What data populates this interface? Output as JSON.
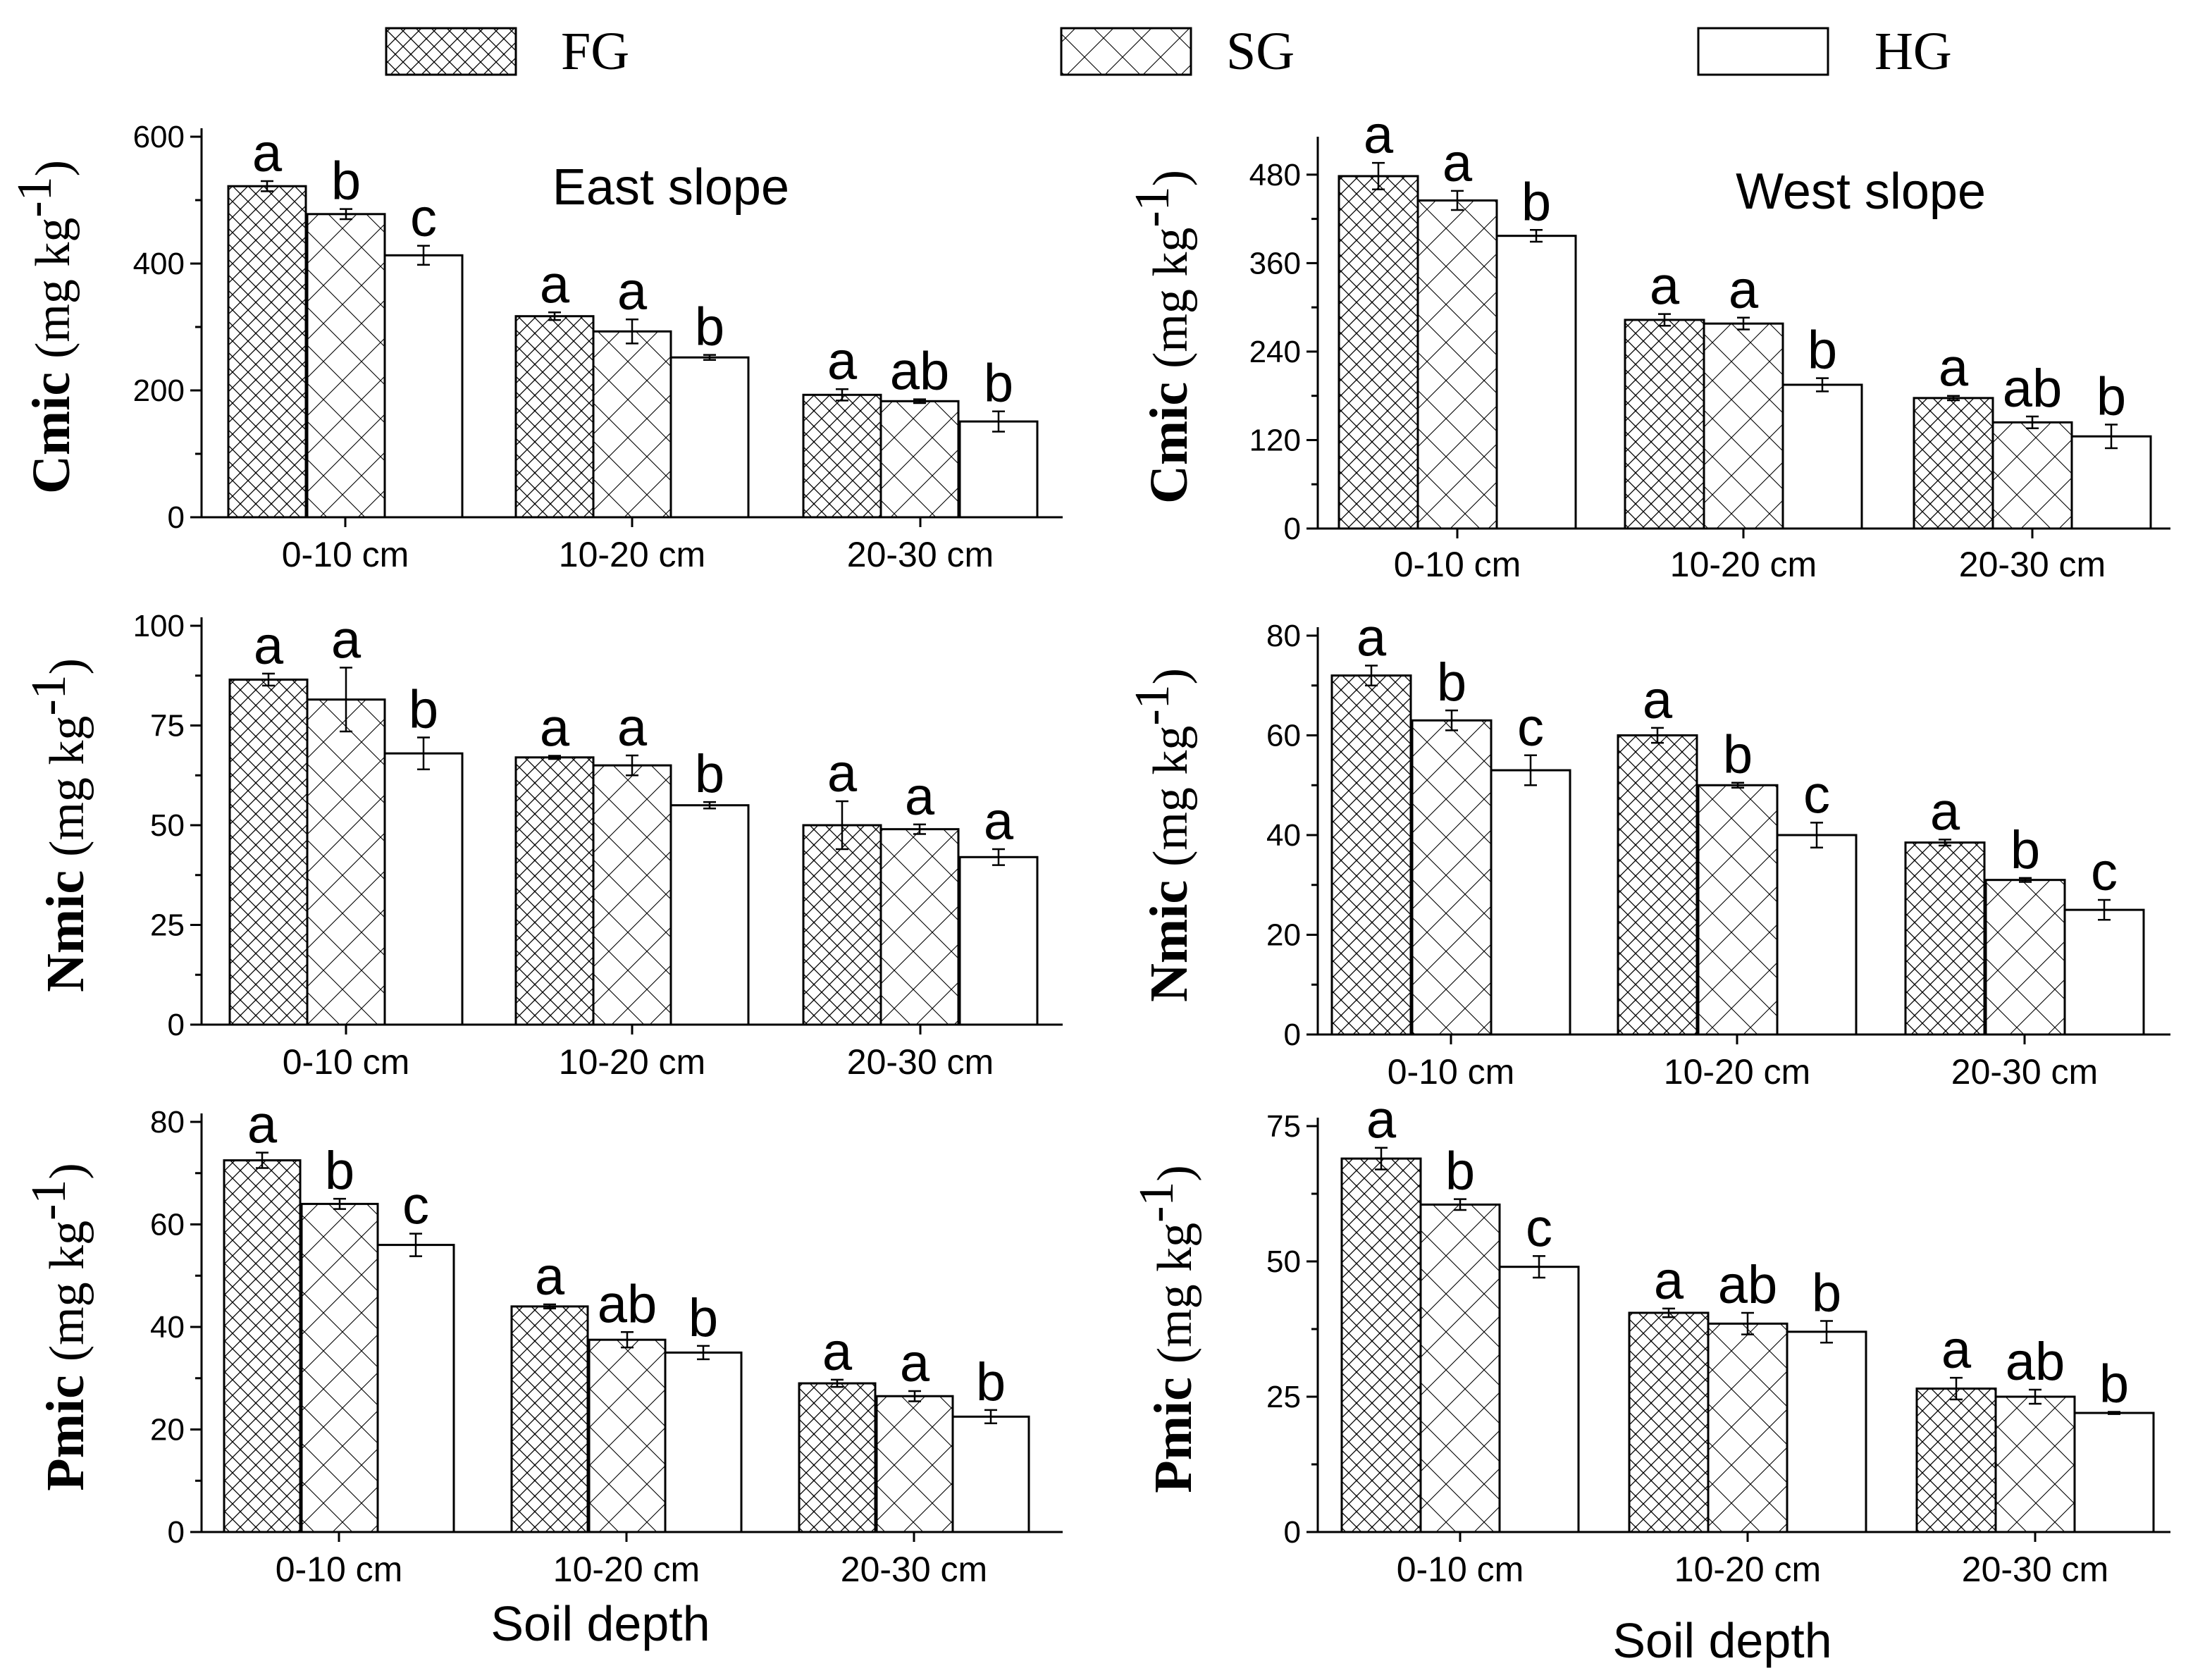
{
  "legend": [
    {
      "key": "FG",
      "label": "FG",
      "pattern": "dense"
    },
    {
      "key": "SG",
      "label": "SG",
      "pattern": "sparse"
    },
    {
      "key": "HG",
      "label": "HG",
      "pattern": "none"
    }
  ],
  "xaxis_title": "Soil depth",
  "chart_data": [
    {
      "type": "bar",
      "panel": "east-cmic",
      "annotation": "East slope",
      "ylabel_main": "Cmic",
      "ylabel_unit": "(mg kg",
      "ylim": [
        0,
        600
      ],
      "yticks": [
        0,
        200,
        400,
        600
      ],
      "categories": [
        "0-10 cm",
        "10-20 cm",
        "20-30 cm"
      ],
      "series": [
        {
          "name": "FG",
          "values": [
            522,
            317,
            193
          ],
          "errors": [
            8,
            6,
            9
          ],
          "sig": [
            "a",
            "a",
            "a"
          ]
        },
        {
          "name": "SG",
          "values": [
            478,
            293,
            183
          ],
          "errors": [
            8,
            19,
            3
          ],
          "sig": [
            "b",
            "a",
            "ab"
          ]
        },
        {
          "name": "HG",
          "values": [
            413,
            252,
            151
          ],
          "errors": [
            15,
            4,
            16
          ],
          "sig": [
            "c",
            "b",
            "b"
          ]
        }
      ]
    },
    {
      "type": "bar",
      "panel": "west-cmic",
      "annotation": "West  slope",
      "ylabel_main": "Cmic",
      "ylabel_unit": "(mg kg",
      "ylim": [
        0,
        520
      ],
      "yticks": [
        0,
        120,
        240,
        360,
        480
      ],
      "categories": [
        "0-10 cm",
        "10-20 cm",
        "20-30 cm"
      ],
      "series": [
        {
          "name": "FG",
          "values": [
            478,
            283,
            177
          ],
          "errors": [
            18,
            8,
            3
          ],
          "sig": [
            "a",
            "a",
            "a"
          ]
        },
        {
          "name": "SG",
          "values": [
            445,
            278,
            144
          ],
          "errors": [
            13,
            8,
            8
          ],
          "sig": [
            "a",
            "a",
            "ab"
          ]
        },
        {
          "name": "HG",
          "values": [
            397,
            195,
            125
          ],
          "errors": [
            8,
            9,
            16
          ],
          "sig": [
            "b",
            "b",
            "b"
          ]
        }
      ]
    },
    {
      "type": "bar",
      "panel": "east-nmic",
      "annotation": "",
      "ylabel_main": "Nmic",
      "ylabel_unit": "(mg kg",
      "ylim": [
        0,
        100
      ],
      "yticks": [
        0,
        25,
        50,
        75,
        100
      ],
      "categories": [
        "0-10 cm",
        "10-20 cm",
        "20-30 cm"
      ],
      "series": [
        {
          "name": "FG",
          "values": [
            86.5,
            67,
            50
          ],
          "errors": [
            1.5,
            0.4,
            6
          ],
          "sig": [
            "a",
            "a",
            "a"
          ]
        },
        {
          "name": "SG",
          "values": [
            81.5,
            65,
            49
          ],
          "errors": [
            8,
            2.5,
            1.2
          ],
          "sig": [
            "a",
            "a",
            "a"
          ]
        },
        {
          "name": "HG",
          "values": [
            68,
            55,
            42
          ],
          "errors": [
            4,
            0.8,
            2
          ],
          "sig": [
            "b",
            "b",
            "a"
          ]
        }
      ]
    },
    {
      "type": "bar",
      "panel": "west-nmic",
      "annotation": "",
      "ylabel_main": "Nmic",
      "ylabel_unit": "(mg kg",
      "ylim": [
        0,
        80
      ],
      "yticks": [
        0,
        20,
        40,
        60,
        80
      ],
      "categories": [
        "0-10 cm",
        "10-20 cm",
        "20-30 cm"
      ],
      "series": [
        {
          "name": "FG",
          "values": [
            72,
            60,
            38.5
          ],
          "errors": [
            2,
            1.5,
            0.6
          ],
          "sig": [
            "a",
            "a",
            "a"
          ]
        },
        {
          "name": "SG",
          "values": [
            63,
            50,
            31
          ],
          "errors": [
            2,
            0.5,
            0.4
          ],
          "sig": [
            "b",
            "b",
            "b"
          ]
        },
        {
          "name": "HG",
          "values": [
            53,
            40,
            25
          ],
          "errors": [
            3,
            2.5,
            2
          ],
          "sig": [
            "c",
            "c",
            "c"
          ]
        }
      ]
    },
    {
      "type": "bar",
      "panel": "east-pmic",
      "annotation": "",
      "ylabel_main": "Pmic",
      "ylabel_unit": "(mg kg",
      "ylim": [
        0,
        80
      ],
      "yticks": [
        0,
        20,
        40,
        60,
        80
      ],
      "categories": [
        "0-10 cm",
        "10-20 cm",
        "20-30 cm"
      ],
      "series": [
        {
          "name": "FG",
          "values": [
            72.5,
            44,
            29
          ],
          "errors": [
            1.5,
            0.4,
            0.7
          ],
          "sig": [
            "a",
            "a",
            "a"
          ]
        },
        {
          "name": "SG",
          "values": [
            64,
            37.5,
            26.5
          ],
          "errors": [
            1,
            1.5,
            1
          ],
          "sig": [
            "b",
            "ab",
            "a"
          ]
        },
        {
          "name": "HG",
          "values": [
            56,
            35,
            22.5
          ],
          "errors": [
            2.2,
            1.3,
            1.3
          ],
          "sig": [
            "c",
            "b",
            "b"
          ]
        }
      ]
    },
    {
      "type": "bar",
      "panel": "west-pmic",
      "annotation": "",
      "ylabel_main": "Pmic",
      "ylabel_unit": "(mg kg",
      "ylim": [
        0,
        75
      ],
      "yticks": [
        0,
        25,
        50,
        75
      ],
      "categories": [
        "0-10 cm",
        "10-20 cm",
        "20-30 cm"
      ],
      "series": [
        {
          "name": "FG",
          "values": [
            69,
            40.5,
            26.5
          ],
          "errors": [
            2,
            0.8,
            2
          ],
          "sig": [
            "a",
            "a",
            "a"
          ]
        },
        {
          "name": "SG",
          "values": [
            60.5,
            38.5,
            25
          ],
          "errors": [
            1,
            2,
            1.3
          ],
          "sig": [
            "b",
            "ab",
            "ab"
          ]
        },
        {
          "name": "HG",
          "values": [
            49,
            37,
            22
          ],
          "errors": [
            2,
            2,
            0.2
          ],
          "sig": [
            "c",
            "b",
            "b"
          ]
        }
      ]
    }
  ]
}
